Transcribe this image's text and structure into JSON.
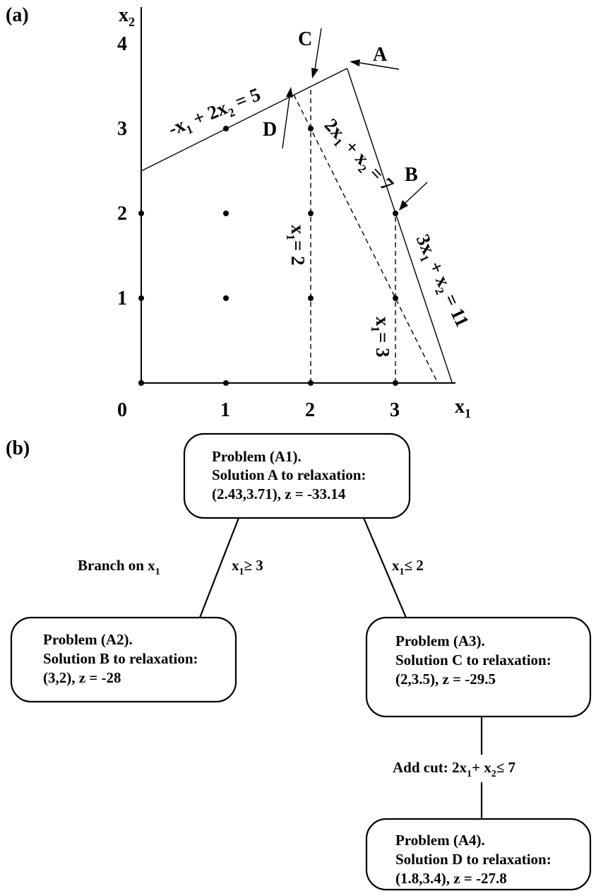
{
  "panels": {
    "a": "(a)",
    "b": "(b)"
  },
  "plot": {
    "origin_label": "0",
    "x_axis": {
      "label": "x",
      "label_sub": "1",
      "ticks": [
        "1",
        "2",
        "3"
      ]
    },
    "y_axis": {
      "label": "x",
      "label_sub": "2",
      "ticks": [
        "1",
        "2",
        "3",
        "4"
      ]
    },
    "lattice_points": [
      [
        0,
        0
      ],
      [
        1,
        0
      ],
      [
        2,
        0
      ],
      [
        3,
        0
      ],
      [
        0,
        1
      ],
      [
        1,
        1
      ],
      [
        2,
        1
      ],
      [
        3,
        1
      ],
      [
        0,
        2
      ],
      [
        1,
        2
      ],
      [
        2,
        2
      ],
      [
        3,
        2
      ],
      [
        1,
        3
      ],
      [
        2,
        3
      ]
    ],
    "constraint_lines": [
      {
        "style": "solid",
        "from": [
          0,
          2.5
        ],
        "to": [
          2.43,
          3.71
        ],
        "label": "-x₁ + 2x₂ = 5"
      },
      {
        "style": "solid",
        "from": [
          2.43,
          3.71
        ],
        "to": [
          3.67,
          0
        ],
        "label": "3x₁ + x₂ = 11"
      },
      {
        "style": "dashed",
        "from": [
          1.8,
          3.4
        ],
        "to": [
          3.5,
          0
        ],
        "label": "2x₁ + x₂ = 7"
      },
      {
        "style": "dashed",
        "from": [
          2,
          0
        ],
        "to": [
          2,
          3.5
        ],
        "label": "x₁ = 2"
      },
      {
        "style": "dashed",
        "from": [
          3,
          0
        ],
        "to": [
          3,
          2
        ],
        "label": "x₁ = 3"
      }
    ],
    "line_labels": {
      "c1": {
        "a": "-x",
        "a_sub": "1",
        "b": " + 2x",
        "b_sub": "2",
        "c": " = 5"
      },
      "c2": {
        "a": "3x",
        "a_sub": "1",
        "b": " + x",
        "b_sub": "2",
        "c": " = 11"
      },
      "cut": {
        "a": "2x",
        "a_sub": "1",
        "b": " + x",
        "b_sub": "2",
        "c": " = 7"
      },
      "x1eq2": {
        "a": "x",
        "a_sub": "1",
        "c": "= 2"
      },
      "x1eq3": {
        "a": "x",
        "a_sub": "1",
        "c": "= 3"
      }
    },
    "points": [
      {
        "label": "A",
        "x": 2.43,
        "y": 3.71
      },
      {
        "label": "B",
        "x": 3,
        "y": 2
      },
      {
        "label": "C",
        "x": 2,
        "y": 3.5
      },
      {
        "label": "D",
        "x": 1.8,
        "y": 3.4
      }
    ]
  },
  "tree": {
    "nodes": {
      "A1": {
        "line1": "Problem (A1).",
        "line2": "Solution A to relaxation:",
        "line3": "(2.43,3.71), z = -33.14"
      },
      "A2": {
        "line1": "Problem (A2).",
        "line2": "Solution B to relaxation:",
        "line3": "(3,2), z = -28"
      },
      "A3": {
        "line1": "Problem (A3).",
        "line2": "Solution C to relaxation:",
        "line3": "(2,3.5), z = -29.5"
      },
      "A4": {
        "line1": "Problem (A4).",
        "line2": "Solution D to relaxation:",
        "line3": "(1.8,3.4), z = -27.8"
      }
    },
    "branch_note": {
      "text": "Branch on x",
      "sub": "1"
    },
    "edge_labels": {
      "left": {
        "a": "x",
        "sub": "1",
        "rest": "≥ 3"
      },
      "right": {
        "a": "x",
        "sub": "1",
        "rest": "≤ 2"
      },
      "cut": {
        "a": "Add cut: 2x",
        "sub1": "1",
        "b": "+ x",
        "sub2": "2",
        "rest": "≤ 7"
      }
    }
  }
}
